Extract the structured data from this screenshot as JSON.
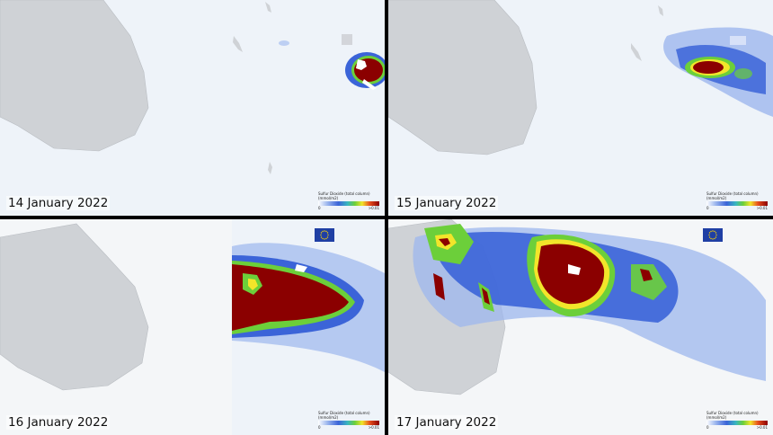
{
  "panels": [
    {
      "date": "14 January 2022",
      "has_flag": false
    },
    {
      "date": "15 January 2022",
      "has_flag": false
    },
    {
      "date": "16 January 2022",
      "has_flag": true
    },
    {
      "date": "17 January 2022",
      "has_flag": true
    }
  ],
  "legend": {
    "title": "Sulfur Dioxide (total column)",
    "units": "(mmol/m2)",
    "min_label": "0",
    "max_label": ">0.01"
  },
  "colors": {
    "land": "#cfd2d6",
    "ocean": "#eef3f9",
    "so2_low": "#9db7ee",
    "so2_mid": "#3b64d8",
    "so2_green": "#6ccf3a",
    "so2_high": "#8b0000",
    "eu_blue": "#1f3fa4",
    "eu_star": "#ffd200"
  },
  "icons": {
    "flag": "eu-flag-icon"
  }
}
